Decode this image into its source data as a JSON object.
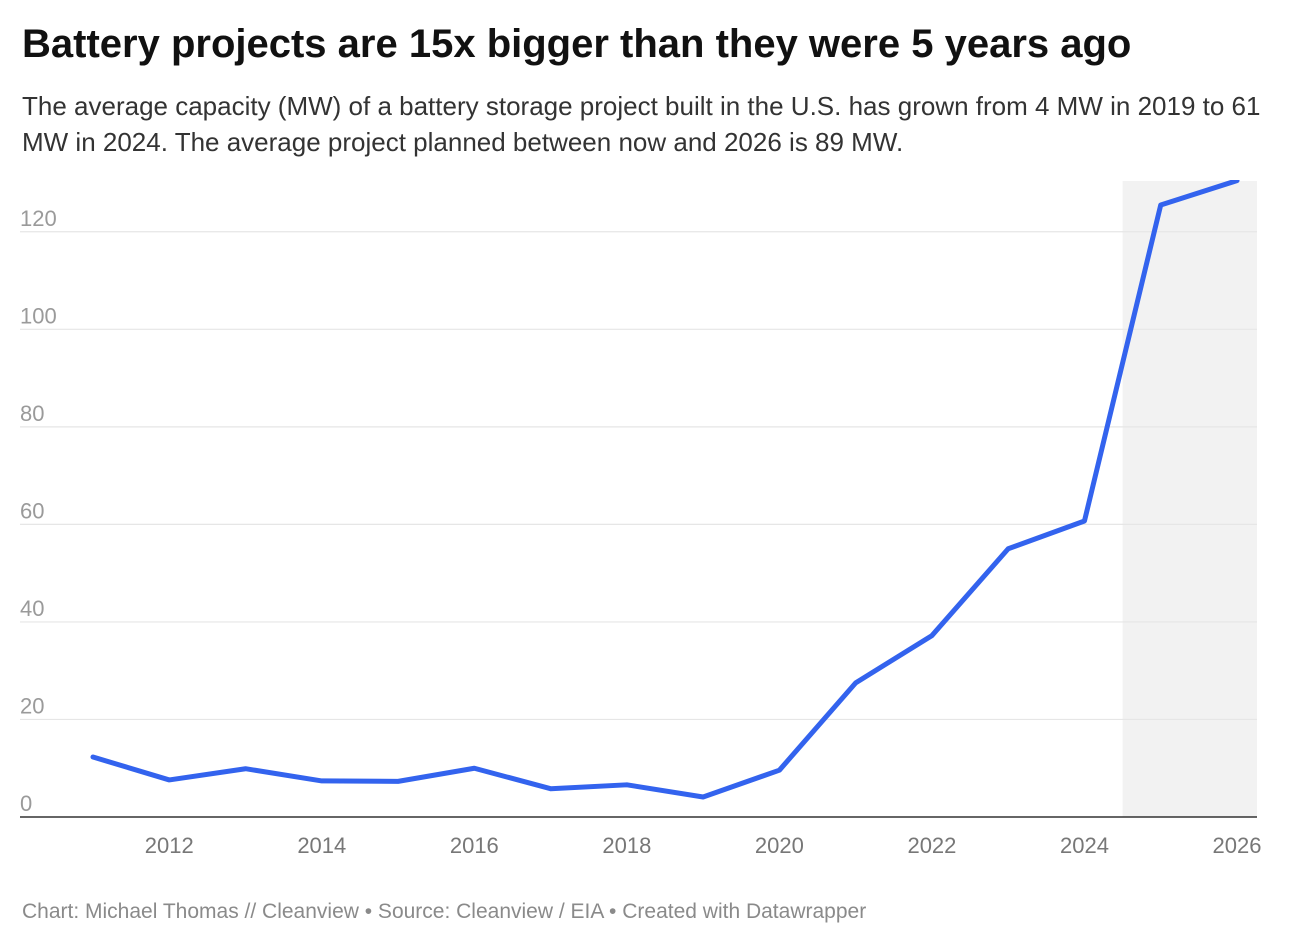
{
  "header": {
    "title": "Battery projects are 15x bigger than they were 5 years ago",
    "subtitle": "The average capacity (MW) of a battery storage project built in the U.S. has grown from 4 MW in 2019 to 61 MW in 2024. The average project planned between now and 2026 is 89 MW."
  },
  "footer": {
    "credit": "Chart: Michael Thomas // Cleanview • Source: Cleanview / EIA • Created with Datawrapper"
  },
  "chart_data": {
    "type": "line",
    "title": "Battery projects are 15x bigger than they were 5 years ago",
    "xlabel": "",
    "ylabel": "",
    "x": [
      2011,
      2012,
      2013,
      2014,
      2015,
      2016,
      2017,
      2018,
      2019,
      2020,
      2021,
      2022,
      2023,
      2024,
      2025,
      2026
    ],
    "series": [
      {
        "values": [
          12.3,
          7.6,
          9.9,
          7.4,
          7.3,
          10.0,
          5.8,
          6.6,
          4.1,
          9.6,
          27.5,
          37.2,
          55.0,
          60.7,
          125.5,
          130.5
        ]
      }
    ],
    "xlim": [
      2011,
      2026
    ],
    "ylim": [
      0,
      130
    ],
    "x_ticks": [
      2012,
      2014,
      2016,
      2018,
      2020,
      2022,
      2024,
      2026
    ],
    "y_ticks": [
      0,
      20,
      40,
      60,
      80,
      100,
      120
    ],
    "shaded_region": [
      2024.5,
      2026
    ],
    "grid": true,
    "line_color": "#3363ee",
    "shade_color": "#f2f2f2"
  }
}
